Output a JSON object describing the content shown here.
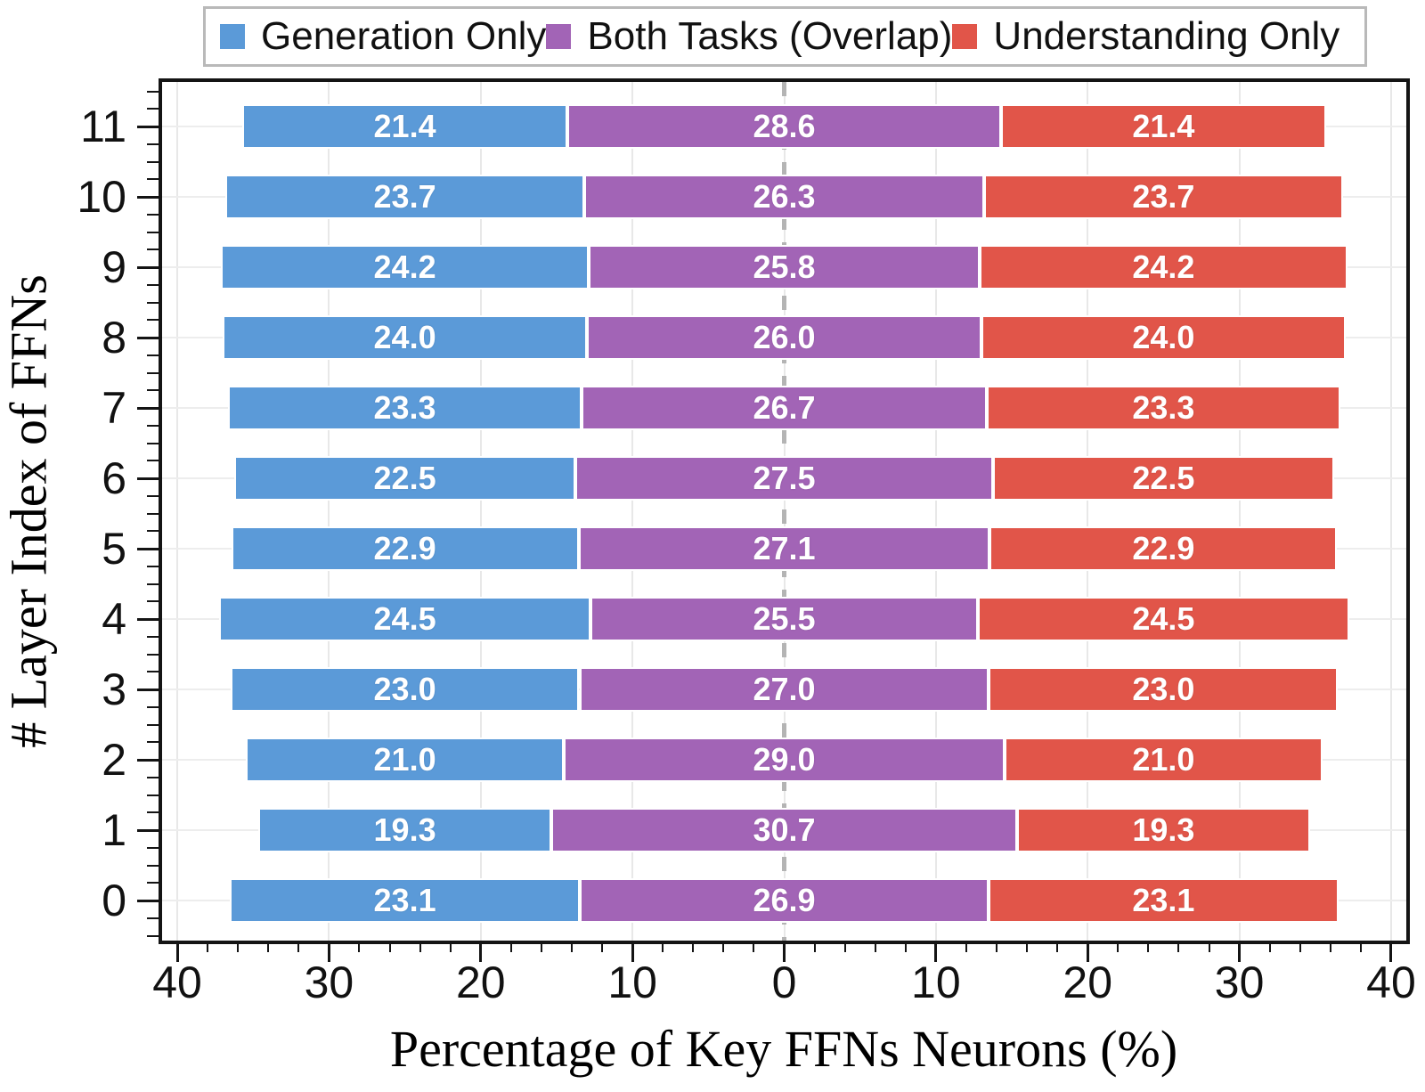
{
  "legend": {
    "items": [
      {
        "label": "Generation Only",
        "color": "#5b9ad8"
      },
      {
        "label": "Both Tasks (Overlap)",
        "color": "#a264b6"
      },
      {
        "label": "Understanding Only",
        "color": "#e15549"
      }
    ]
  },
  "chart_data": {
    "type": "bar",
    "variant": "diverging-stacked-horizontal",
    "title": "",
    "xlabel": "Percentage of Key FFNs Neurons (%)",
    "ylabel": "# Layer Index of FFNs",
    "categories": [
      "11",
      "10",
      "9",
      "8",
      "7",
      "6",
      "5",
      "4",
      "3",
      "2",
      "1",
      "0"
    ],
    "series": [
      {
        "name": "Generation Only",
        "key": "generation",
        "color": "#5b9ad8",
        "values": [
          21.4,
          23.7,
          24.2,
          24.0,
          23.3,
          22.5,
          22.9,
          24.5,
          23.0,
          21.0,
          19.3,
          23.1
        ]
      },
      {
        "name": "Both Tasks (Overlap)",
        "key": "both",
        "color": "#a264b6",
        "values": [
          28.6,
          26.3,
          25.8,
          26.0,
          26.7,
          27.5,
          27.1,
          25.5,
          27.0,
          29.0,
          30.7,
          26.9
        ]
      },
      {
        "name": "Understanding Only",
        "key": "understanding",
        "color": "#e15549",
        "values": [
          21.4,
          23.7,
          24.2,
          24.0,
          23.3,
          22.5,
          22.9,
          24.5,
          23.0,
          21.0,
          19.3,
          23.1
        ]
      }
    ],
    "layout_note": "middle series is centered on 0; first series extends left, third extends right",
    "x_tick_values": [
      -40,
      -30,
      -20,
      -10,
      0,
      10,
      20,
      30,
      40
    ],
    "x_tick_labels": [
      "40",
      "30",
      "20",
      "10",
      "0",
      "10",
      "20",
      "30",
      "40"
    ],
    "xlim": [
      -41,
      41
    ],
    "grid": true,
    "center_line": {
      "x": 0,
      "style": "dashed",
      "color": "#b4b4b4"
    },
    "legend_position": "top"
  }
}
